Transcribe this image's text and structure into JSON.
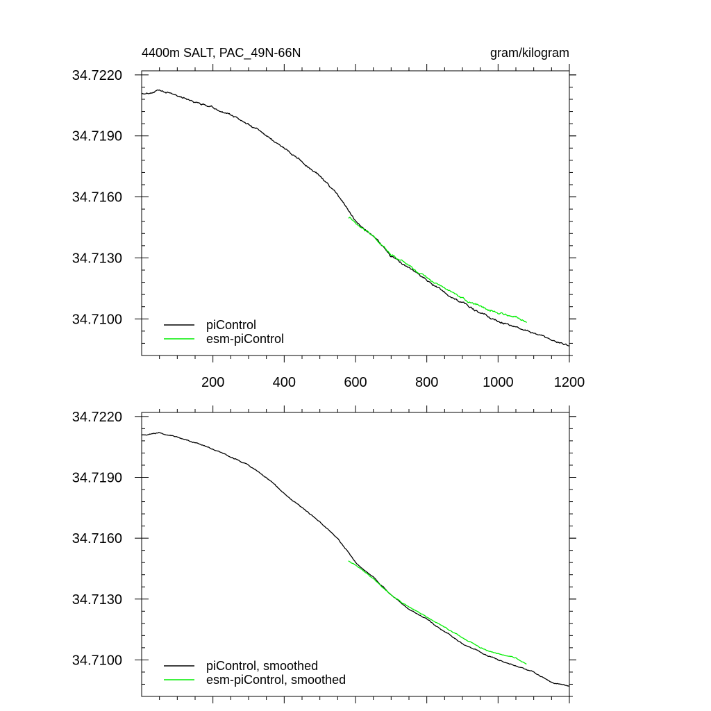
{
  "figure": {
    "title_left": "4400m SALT, PAC_49N-66N",
    "title_right": "gram/kilogram"
  },
  "colors": {
    "piControl": "#000000",
    "esm_piControl": "#00ee00",
    "axis": "#000000"
  },
  "chart_data": [
    {
      "type": "line",
      "title": "4400m SALT, PAC_49N-66N",
      "units": "gram/kilogram",
      "xlim": [
        0,
        1200
      ],
      "ylim": [
        34.7082,
        34.7222
      ],
      "x_ticks": [
        200,
        400,
        600,
        800,
        1000,
        1200
      ],
      "x_tick_labels": [
        "200",
        "400",
        "600",
        "800",
        "1000",
        "1200"
      ],
      "y_ticks": [
        34.71,
        34.713,
        34.716,
        34.719,
        34.722
      ],
      "y_tick_labels": [
        "34.7100",
        "34.7130",
        "34.7160",
        "34.7190",
        "34.7220"
      ],
      "legend_position": "bottom-left",
      "grid": false,
      "series": [
        {
          "name": "piControl",
          "color": "#000000",
          "noise": 6e-05,
          "x": [
            0,
            50,
            100,
            150,
            200,
            250,
            300,
            350,
            400,
            450,
            500,
            550,
            600,
            650,
            700,
            750,
            800,
            850,
            900,
            950,
            1000,
            1050,
            1100,
            1150,
            1200
          ],
          "y": [
            34.7211,
            34.7212,
            34.721,
            34.7207,
            34.7204,
            34.72,
            34.7196,
            34.719,
            34.7184,
            34.7177,
            34.717,
            34.7161,
            34.7148,
            34.7141,
            34.7131,
            34.7125,
            34.7119,
            34.7113,
            34.7108,
            34.7103,
            34.7099,
            34.7096,
            34.7093,
            34.7089,
            34.7087
          ]
        },
        {
          "name": "esm-piControl",
          "color": "#00ee00",
          "noise": 6e-05,
          "x": [
            580,
            600,
            650,
            700,
            750,
            800,
            850,
            900,
            950,
            1000,
            1050,
            1080
          ],
          "y": [
            34.715,
            34.7148,
            34.7141,
            34.7132,
            34.7126,
            34.712,
            34.7115,
            34.711,
            34.7106,
            34.7103,
            34.7101,
            34.7098
          ]
        }
      ]
    },
    {
      "type": "line",
      "xlim": [
        0,
        1200
      ],
      "ylim": [
        34.7082,
        34.7222
      ],
      "x_ticks": [
        200,
        400,
        600,
        800,
        1000,
        1200
      ],
      "x_tick_labels": [],
      "y_ticks": [
        34.71,
        34.713,
        34.716,
        34.719,
        34.722
      ],
      "y_tick_labels": [
        "34.7100",
        "34.7130",
        "34.7160",
        "34.7190",
        "34.7220"
      ],
      "legend_position": "bottom-left",
      "grid": false,
      "series": [
        {
          "name": "piControl, smoothed",
          "color": "#000000",
          "noise": 3e-05,
          "x": [
            0,
            50,
            100,
            150,
            200,
            250,
            300,
            350,
            400,
            450,
            500,
            550,
            600,
            650,
            700,
            750,
            800,
            850,
            900,
            950,
            1000,
            1050,
            1100,
            1150,
            1200
          ],
          "y": [
            34.7211,
            34.7212,
            34.721,
            34.7207,
            34.7204,
            34.72,
            34.7196,
            34.719,
            34.7182,
            34.7175,
            34.7168,
            34.716,
            34.7148,
            34.7141,
            34.7132,
            34.7125,
            34.712,
            34.7114,
            34.7108,
            34.7104,
            34.71,
            34.7097,
            34.7094,
            34.7089,
            34.7087
          ]
        },
        {
          "name": "esm-piControl, smoothed",
          "color": "#00ee00",
          "noise": 3e-05,
          "x": [
            580,
            600,
            650,
            700,
            750,
            800,
            850,
            900,
            950,
            1000,
            1050,
            1080
          ],
          "y": [
            34.7149,
            34.7147,
            34.714,
            34.7132,
            34.7126,
            34.7121,
            34.7116,
            34.7111,
            34.7106,
            34.7103,
            34.7101,
            34.7098
          ]
        }
      ]
    }
  ]
}
